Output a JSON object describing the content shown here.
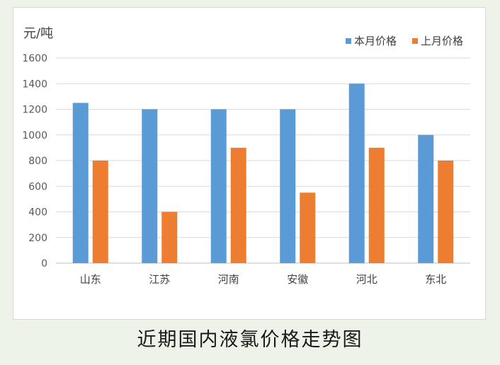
{
  "caption": "近期国内液氯价格走势图",
  "chart_data": {
    "type": "bar",
    "ylabel": "元/吨",
    "categories": [
      "山东",
      "江苏",
      "河南",
      "安徽",
      "河北",
      "东北"
    ],
    "series": [
      {
        "name": "本月价格",
        "color": "#5b9bd5",
        "values": [
          1250,
          1200,
          1200,
          1200,
          1400,
          1000
        ]
      },
      {
        "name": "上月价格",
        "color": "#ed7d31",
        "values": [
          800,
          400,
          900,
          550,
          900,
          800
        ]
      }
    ],
    "ylim": [
      0,
      1600
    ],
    "yticks": [
      0,
      200,
      400,
      600,
      800,
      1000,
      1200,
      1400,
      1600
    ],
    "grid": true,
    "legend": "top-right"
  }
}
